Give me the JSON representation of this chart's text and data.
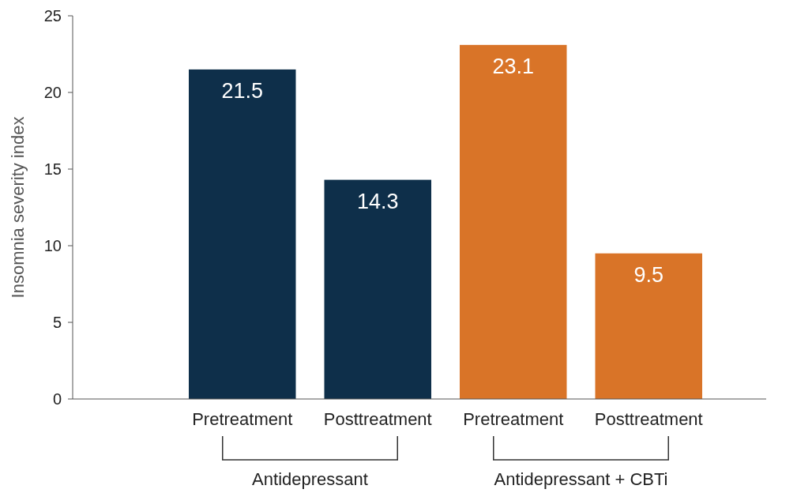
{
  "chart_data": {
    "type": "bar",
    "ylabel": "Insomnia severity index",
    "categories": [
      "Pretreatment",
      "Posttreatment",
      "Pretreatment",
      "Posttreatment"
    ],
    "values": [
      21.5,
      14.3,
      23.1,
      9.5
    ],
    "colors": [
      "#0e2f4a",
      "#0e2f4a",
      "#d97428",
      "#d97428"
    ],
    "ylim": [
      0,
      25
    ],
    "yticks": [
      0,
      5,
      10,
      15,
      20,
      25
    ],
    "data_labels": true,
    "annotations": [
      "Antidepressant",
      "Antidepressant + CBTi"
    ]
  }
}
